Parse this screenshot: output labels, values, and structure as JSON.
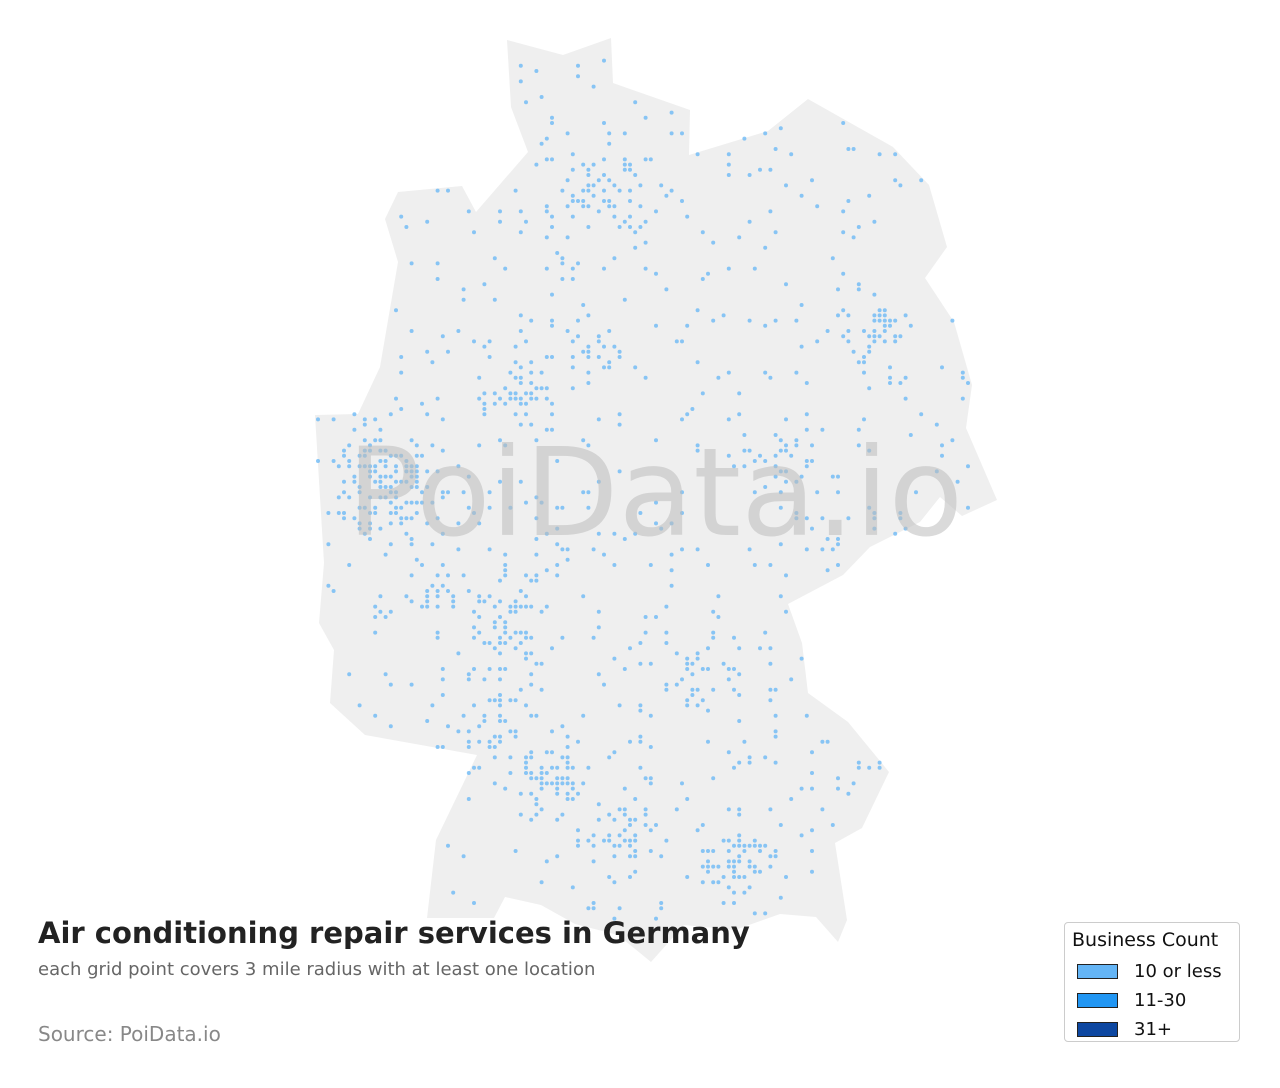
{
  "title": "Air conditioning repair services in Germany",
  "subtitle": "each grid point covers 3 mile radius with at least one location",
  "source": "Source: PoiData.io",
  "watermark": "PoiData.io",
  "colors": {
    "land": "#efefef",
    "dot": "#64b5f6",
    "watermark": "#bdbdbd"
  },
  "legend": {
    "title": "Business Count",
    "items": [
      {
        "label": "10 or less",
        "color": "#64b5f6"
      },
      {
        "label": "11-30",
        "color": "#2196f3"
      },
      {
        "label": "31+",
        "color": "#0d47a1"
      }
    ]
  },
  "chart_data": {
    "type": "scatter",
    "region": "Germany",
    "legend_placement": "bottom-right",
    "categories": [
      "10 or less",
      "11-30",
      "31+"
    ],
    "visible_category": "10 or less"
  }
}
